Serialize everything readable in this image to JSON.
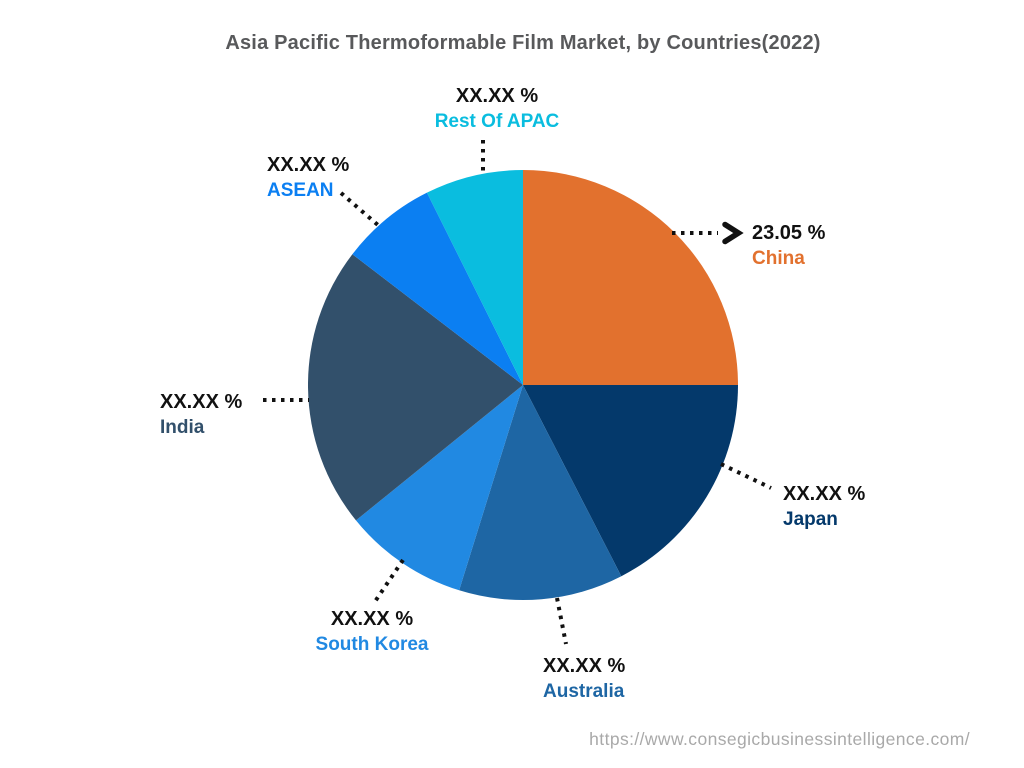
{
  "title": "Asia Pacific Thermoformable Film Market, by Countries(2022)",
  "footer": {
    "url": "https://www.consegicbusinessintelligence.com/"
  },
  "chart_data": {
    "type": "pie",
    "title": "Asia Pacific Thermoformable Film Market, by Countries(2022)",
    "legend": "none",
    "start_angle_deg_from_north": 0,
    "direction": "clockwise",
    "values_masked_except_china": true,
    "slices": [
      {
        "name": "China",
        "pct_label": "23.05 %",
        "value_display": 23.05,
        "visual_pct": 25.0,
        "color": "#e2712e"
      },
      {
        "name": "Japan",
        "pct_label": "XX.XX %",
        "value_display": null,
        "visual_pct": 17.44,
        "color": "#04396b"
      },
      {
        "name": "Australia",
        "pct_label": "XX.XX %",
        "value_display": null,
        "visual_pct": 12.36,
        "color": "#1e66a4"
      },
      {
        "name": "South Korea",
        "pct_label": "XX.XX %",
        "value_display": null,
        "visual_pct": 9.36,
        "color": "#2189e2"
      },
      {
        "name": "India",
        "pct_label": "XX.XX %",
        "value_display": null,
        "visual_pct": 21.25,
        "color": "#32506b"
      },
      {
        "name": "ASEAN",
        "pct_label": "XX.XX %",
        "value_display": null,
        "visual_pct": 7.22,
        "color": "#0b7ff2"
      },
      {
        "name": "Rest Of APAC",
        "pct_label": "XX.XX %",
        "value_display": null,
        "visual_pct": 7.37,
        "color": "#0abddf"
      }
    ]
  }
}
